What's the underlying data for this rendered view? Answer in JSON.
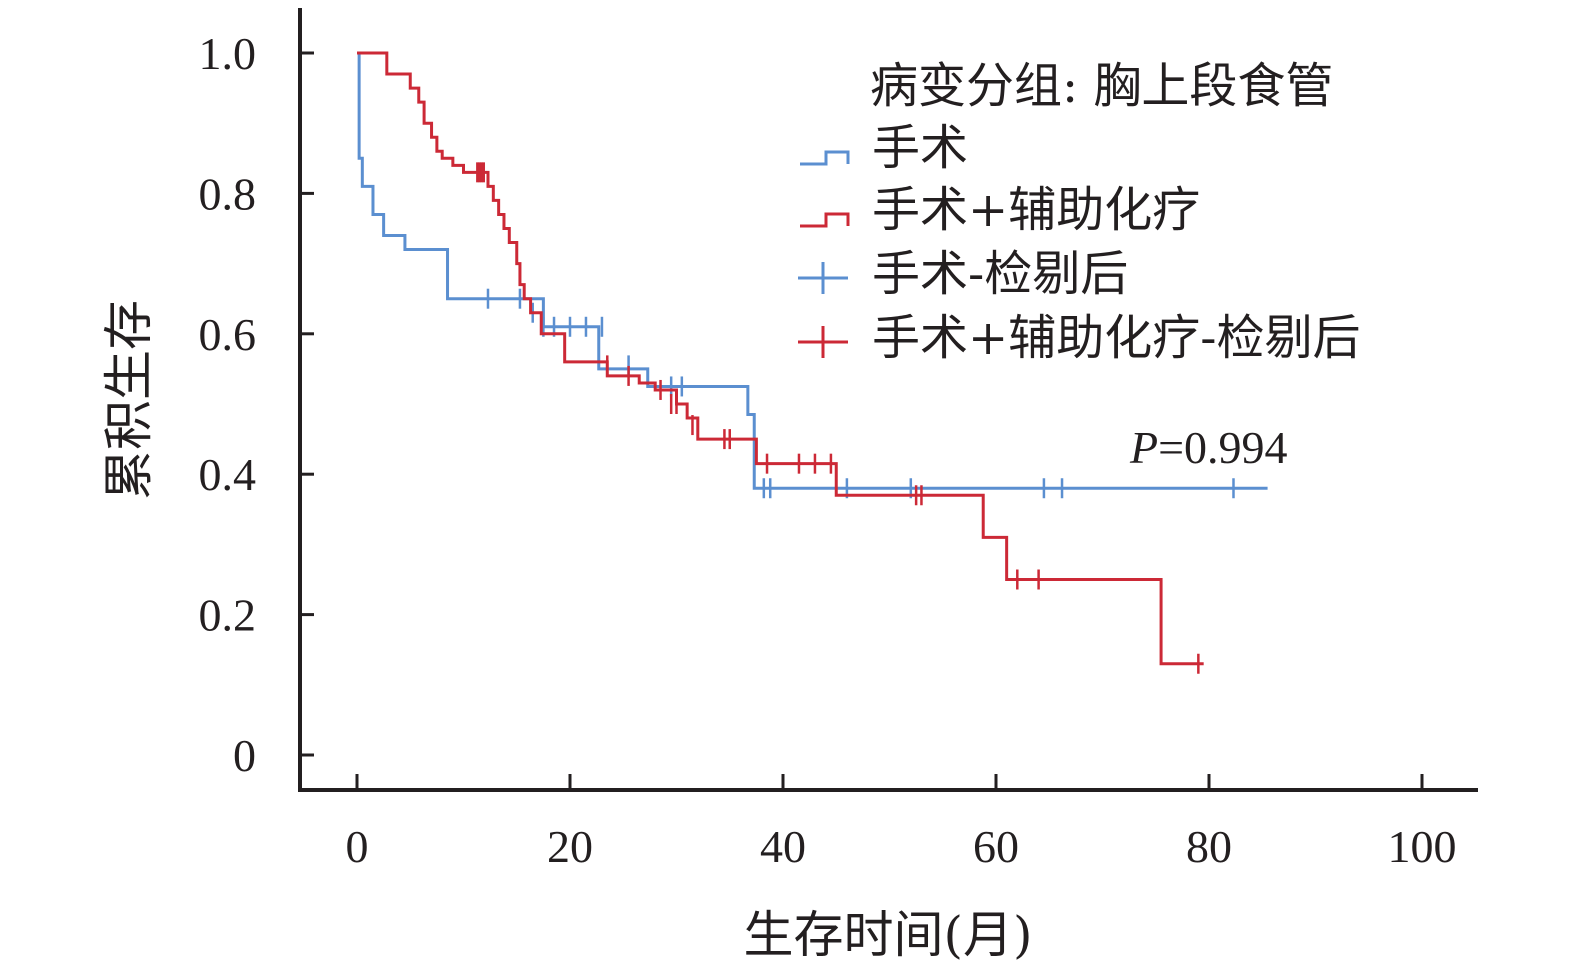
{
  "chart_data": {
    "type": "line",
    "subtype": "kaplan-meier step",
    "xlabel": "生存时间(月)",
    "ylabel": "累积生存",
    "xlim": [
      0,
      100
    ],
    "ylim": [
      0,
      1.0
    ],
    "x_ticks": [
      "0",
      "20",
      "40",
      "60",
      "80",
      "100"
    ],
    "y_ticks": [
      "0",
      "0.2",
      "0.4",
      "0.6",
      "0.8",
      "1.0"
    ],
    "grid": false,
    "legend": {
      "title": "病变分组: 胸上段食管",
      "placement": "top-right",
      "entries": [
        "手术",
        "手术+辅助化疗",
        "手术-检剔后",
        "手术+辅助化疗-检剔后"
      ]
    },
    "annotation": {
      "italic": "P",
      "text": "=0.994"
    },
    "colors": {
      "surgery": "#5b8fd0",
      "chemo": "#cc2936",
      "axis": "#231f20"
    },
    "series": [
      {
        "name": "手术",
        "color": "#5b8fd0",
        "steps": [
          [
            0,
            1.0
          ],
          [
            0.2,
            0.85
          ],
          [
            0.5,
            0.81
          ],
          [
            1.5,
            0.77
          ],
          [
            2.5,
            0.74
          ],
          [
            4.5,
            0.72
          ],
          [
            8.5,
            0.65
          ],
          [
            17.5,
            0.61
          ],
          [
            22.7,
            0.55
          ],
          [
            27.3,
            0.525
          ],
          [
            36.7,
            0.485
          ],
          [
            37.3,
            0.38
          ],
          [
            85.5,
            0.38
          ]
        ],
        "censored": [
          [
            12.3,
            0.65
          ],
          [
            15.3,
            0.65
          ],
          [
            16.5,
            0.63
          ],
          [
            17.5,
            0.61
          ],
          [
            18.5,
            0.61
          ],
          [
            20.0,
            0.61
          ],
          [
            21.5,
            0.61
          ],
          [
            23.0,
            0.61
          ],
          [
            25.5,
            0.555
          ],
          [
            29.5,
            0.525
          ],
          [
            30.5,
            0.525
          ],
          [
            38.2,
            0.38
          ],
          [
            38.8,
            0.38
          ],
          [
            46.0,
            0.38
          ],
          [
            52.0,
            0.38
          ],
          [
            64.5,
            0.38
          ],
          [
            66.2,
            0.38
          ],
          [
            82.3,
            0.38
          ]
        ]
      },
      {
        "name": "手术+辅助化疗",
        "color": "#cc2936",
        "steps": [
          [
            0,
            1.0
          ],
          [
            2.8,
            0.97
          ],
          [
            5.0,
            0.95
          ],
          [
            5.8,
            0.93
          ],
          [
            6.3,
            0.9
          ],
          [
            7.0,
            0.88
          ],
          [
            7.5,
            0.86
          ],
          [
            8.0,
            0.85
          ],
          [
            9.0,
            0.84
          ],
          [
            10.0,
            0.83
          ],
          [
            12.3,
            0.81
          ],
          [
            12.8,
            0.79
          ],
          [
            13.3,
            0.77
          ],
          [
            13.8,
            0.75
          ],
          [
            14.3,
            0.73
          ],
          [
            15.0,
            0.7
          ],
          [
            15.3,
            0.67
          ],
          [
            15.7,
            0.65
          ],
          [
            16.3,
            0.63
          ],
          [
            17.3,
            0.6
          ],
          [
            19.5,
            0.56
          ],
          [
            23.5,
            0.54
          ],
          [
            26.5,
            0.53
          ],
          [
            28.0,
            0.52
          ],
          [
            30.0,
            0.5
          ],
          [
            31.0,
            0.48
          ],
          [
            32.0,
            0.45
          ],
          [
            37.5,
            0.415
          ],
          [
            45.0,
            0.37
          ],
          [
            58.8,
            0.31
          ],
          [
            61.0,
            0.25
          ],
          [
            75.5,
            0.13
          ],
          [
            79.5,
            0.13
          ]
        ],
        "censored": [
          [
            11.3,
            0.83
          ],
          [
            11.5,
            0.83
          ],
          [
            11.7,
            0.83
          ],
          [
            11.9,
            0.83
          ],
          [
            23.5,
            0.555
          ],
          [
            25.5,
            0.54
          ],
          [
            28.5,
            0.52
          ],
          [
            29.5,
            0.5
          ],
          [
            30.0,
            0.5
          ],
          [
            31.5,
            0.47
          ],
          [
            34.5,
            0.45
          ],
          [
            35.0,
            0.45
          ],
          [
            38.5,
            0.415
          ],
          [
            41.5,
            0.415
          ],
          [
            43.0,
            0.415
          ],
          [
            44.5,
            0.415
          ],
          [
            52.5,
            0.37
          ],
          [
            53.0,
            0.37
          ],
          [
            62.0,
            0.25
          ],
          [
            64.0,
            0.25
          ],
          [
            79.0,
            0.13
          ]
        ]
      }
    ]
  }
}
